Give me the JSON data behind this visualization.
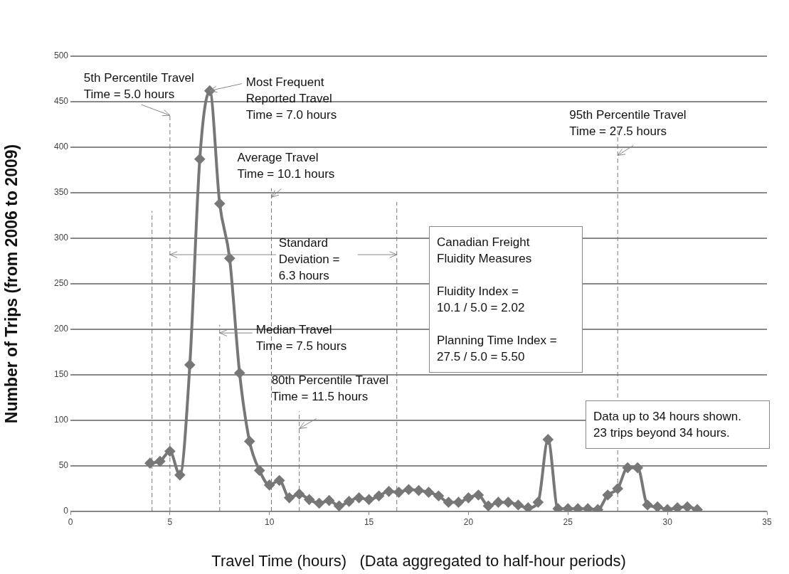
{
  "chart_data": {
    "type": "line",
    "xlabel": "Travel Time (hours)   (Data aggregated to half-hour periods)",
    "ylabel": "Number of Trips (from 2006 to 2009)",
    "x": [
      4,
      4.5,
      5,
      5.5,
      6,
      6.5,
      7,
      7.5,
      8,
      8.5,
      9,
      9.5,
      10,
      10.5,
      11,
      11.5,
      12,
      12.5,
      13,
      13.5,
      14,
      14.5,
      15,
      15.5,
      16,
      16.5,
      17,
      17.5,
      18,
      18.5,
      19,
      19.5,
      20,
      20.5,
      21,
      21.5,
      22,
      22.5,
      23,
      23.5,
      24,
      24.5,
      25,
      25.5,
      26,
      26.5,
      27,
      27.5,
      28,
      28.5,
      29,
      29.5,
      30,
      30.5,
      31,
      31.5
    ],
    "series": [
      {
        "color": "#777777",
        "values": [
          53,
          55,
          66,
          40,
          161,
          387,
          462,
          338,
          278,
          152,
          77,
          45,
          29,
          34,
          15,
          19,
          13,
          9,
          12,
          6,
          11,
          15,
          13,
          17,
          22,
          21,
          24,
          23,
          21,
          17,
          10,
          10,
          15,
          18,
          6,
          10,
          10,
          7,
          4,
          10,
          79,
          3,
          3,
          3,
          3,
          2,
          18,
          25,
          48,
          48,
          7,
          5,
          2,
          4,
          5,
          2
        ]
      }
    ],
    "xlim": [
      0,
      35
    ],
    "xticks": [
      0,
      5,
      10,
      15,
      20,
      25,
      30,
      35
    ],
    "ylim": [
      0,
      500
    ],
    "yticks": [
      0,
      50,
      100,
      150,
      200,
      250,
      300,
      350,
      400,
      450,
      500
    ],
    "grid": "y",
    "legend": false,
    "marker": "diamond",
    "line_style": "solid",
    "ref_lines": [
      {
        "axis": "x",
        "value": 4.1,
        "line_style": "dashed",
        "color": "#777777"
      },
      {
        "axis": "x",
        "value": 5.0,
        "line_style": "dashed",
        "color": "#777777"
      },
      {
        "axis": "x",
        "value": 7.5,
        "line_style": "dashed",
        "color": "#777777"
      },
      {
        "axis": "x",
        "value": 10.1,
        "line_style": "dashed",
        "color": "#777777"
      },
      {
        "axis": "x",
        "value": 11.5,
        "line_style": "dashed",
        "color": "#777777"
      },
      {
        "axis": "x",
        "value": 16.4,
        "line_style": "dashed",
        "color": "#777777"
      },
      {
        "axis": "x",
        "value": 27.5,
        "line_style": "dashed",
        "color": "#777777"
      }
    ],
    "annotations": [
      {
        "text": "5th Percentile Travel\nTime = 5.0 hours",
        "x": 5.0,
        "y": 435
      },
      {
        "text": "Most Frequent\nReported Travel\nTime = 7.0 hours",
        "x": 7.0,
        "y": 462
      },
      {
        "text": "Average Travel\nTime = 10.1 hours",
        "x": 10.1,
        "y": 345
      },
      {
        "text": "Median Travel\nTime = 7.5 hours",
        "x": 7.5,
        "y": 196
      },
      {
        "text": "80th Percentile Travel\nTime = 11.5 hours",
        "x": 11.5,
        "y": 91
      },
      {
        "text": "95th Percentile Travel\nTime = 27.5 hours",
        "x": 27.5,
        "y": 391
      },
      {
        "text": "Standard\nDeviation =\n6.3 hours",
        "x": 5.0,
        "y": 282
      },
      "Canadian Freight\nFluidity Measures\n\nFluidity Index =\n10.1 / 5.0 = 2.02\n\nPlanning Time Index =\n27.5 / 5.0 = 5.50",
      "Data up to 34 hours shown.\n23 trips beyond 34 hours."
    ]
  }
}
